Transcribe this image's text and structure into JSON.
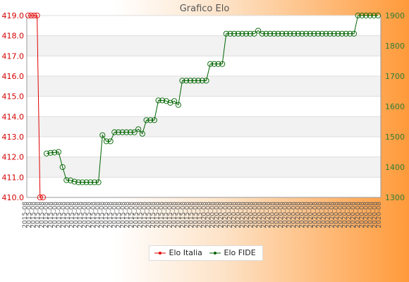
{
  "chart_data": {
    "type": "line",
    "title": "Grafico Elo",
    "colors": {
      "italia": "#e00000",
      "fide": "#006400"
    },
    "y_left": {
      "min": 410,
      "max": 419,
      "ticks": [
        "410.0",
        "411.0",
        "412.0",
        "413.0",
        "414.0",
        "415.0",
        "416.0",
        "417.0",
        "418.0",
        "419.0"
      ],
      "color": "#d40000"
    },
    "y_right": {
      "min": 1300,
      "max": 1900,
      "ticks": [
        "1300",
        "1400",
        "1500",
        "1600",
        "1700",
        "1800",
        "1900"
      ],
      "color": "#2e7d32"
    },
    "grid": true,
    "legend_position": "bottom-center",
    "x_tick_count": 84,
    "x_tick_label_examples": [
      "2015-08",
      "2020-08"
    ],
    "series": [
      {
        "name": "Elo Italia",
        "axis": "left",
        "color": "#e00000",
        "values": [
          419,
          419,
          419,
          419,
          410,
          410
        ]
      },
      {
        "name": "Elo FIDE",
        "axis": "right",
        "color": "#006400",
        "values": [
          1445,
          1447,
          1448,
          1450,
          1400,
          1357,
          1356,
          1352,
          1350,
          1350,
          1350,
          1350,
          1350,
          1350,
          1505,
          1485,
          1485,
          1515,
          1515,
          1515,
          1515,
          1515,
          1515,
          1525,
          1510,
          1555,
          1555,
          1555,
          1620,
          1620,
          1618,
          1612,
          1618,
          1605,
          1685,
          1685,
          1685,
          1685,
          1685,
          1685,
          1685,
          1740,
          1740,
          1740,
          1740,
          1840,
          1840,
          1840,
          1840,
          1840,
          1840,
          1840,
          1840,
          1850,
          1840,
          1840,
          1840,
          1840,
          1840,
          1840,
          1840,
          1840,
          1840,
          1840,
          1840,
          1840,
          1840,
          1840,
          1840,
          1840,
          1840,
          1840,
          1840,
          1840,
          1840,
          1840,
          1840,
          1840,
          1900,
          1900,
          1900,
          1900,
          1900,
          1900
        ]
      }
    ]
  }
}
